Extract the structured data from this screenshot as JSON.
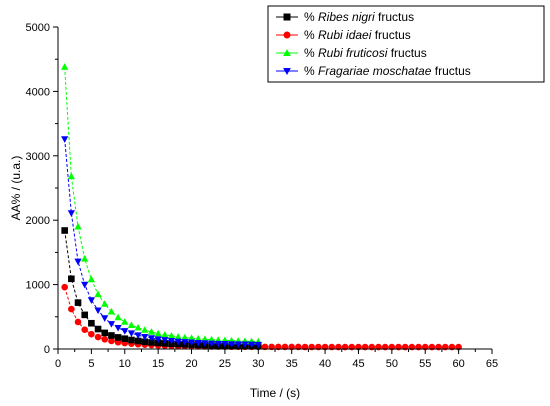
{
  "chart_data": {
    "type": "line",
    "xlabel": "Time / (s)",
    "ylabel": "AA% / (u.a.)",
    "xlim": [
      0,
      65
    ],
    "ylim": [
      0,
      5000
    ],
    "xticks": [
      0,
      5,
      10,
      15,
      20,
      25,
      30,
      35,
      40,
      45,
      50,
      55,
      60,
      65
    ],
    "yticks": [
      0,
      1000,
      2000,
      3000,
      4000,
      5000
    ],
    "legend_position": "top-right",
    "grid": false,
    "series": [
      {
        "name_parts": [
          "% ",
          "Ribes nigri",
          " fructus"
        ],
        "color": "#000000",
        "marker": "square",
        "x": [
          1,
          2,
          3,
          4,
          5,
          6,
          7,
          8,
          9,
          10,
          11,
          12,
          13,
          14,
          15,
          16,
          17,
          18,
          19,
          20,
          21,
          22,
          23,
          24,
          25,
          26,
          27,
          28,
          29,
          30
        ],
        "values": [
          1840,
          1090,
          720,
          530,
          400,
          310,
          250,
          210,
          180,
          160,
          140,
          125,
          112,
          102,
          94,
          87,
          81,
          76,
          72,
          68,
          65,
          62,
          60,
          58,
          56,
          55,
          54,
          53,
          52,
          51
        ]
      },
      {
        "name_parts": [
          "% ",
          "Rubi idaei",
          " fructus"
        ],
        "color": "#ff0000",
        "marker": "circle",
        "x": [
          1,
          2,
          3,
          4,
          5,
          6,
          7,
          8,
          9,
          10,
          11,
          12,
          13,
          14,
          15,
          16,
          17,
          18,
          19,
          20,
          21,
          22,
          23,
          24,
          25,
          26,
          27,
          28,
          29,
          30,
          31,
          32,
          33,
          34,
          35,
          36,
          37,
          38,
          39,
          40,
          41,
          42,
          43,
          44,
          45,
          46,
          47,
          48,
          49,
          50,
          51,
          52,
          53,
          54,
          55,
          56,
          57,
          58,
          59,
          60
        ],
        "values": [
          960,
          620,
          420,
          300,
          230,
          185,
          150,
          125,
          105,
          92,
          82,
          74,
          67,
          61,
          56,
          52,
          49,
          46,
          44,
          42,
          40,
          39,
          38,
          37,
          36,
          35,
          35,
          34,
          34,
          33,
          33,
          33,
          32,
          32,
          32,
          32,
          31,
          31,
          31,
          31,
          31,
          30,
          30,
          30,
          30,
          30,
          30,
          30,
          30,
          30,
          30,
          30,
          30,
          30,
          30,
          30,
          30,
          30,
          30,
          30
        ]
      },
      {
        "name_parts": [
          "% ",
          "Rubi fruticosi",
          " fructus"
        ],
        "color": "#00ff00",
        "marker": "triangle-up",
        "x": [
          1,
          2,
          3,
          4,
          5,
          6,
          7,
          8,
          9,
          10,
          11,
          12,
          13,
          14,
          15,
          16,
          17,
          18,
          19,
          20,
          21,
          22,
          23,
          24,
          25,
          26,
          27,
          28,
          29,
          30
        ],
        "values": [
          4380,
          2680,
          1900,
          1400,
          1080,
          850,
          700,
          580,
          490,
          420,
          370,
          330,
          295,
          265,
          240,
          220,
          205,
          190,
          178,
          168,
          160,
          152,
          146,
          140,
          135,
          130,
          126,
          122,
          118,
          115
        ]
      },
      {
        "name_parts": [
          "% ",
          "Fragariae moschatae",
          " fructus"
        ],
        "color": "#0000ff",
        "marker": "triangle-down",
        "x": [
          1,
          2,
          3,
          4,
          5,
          6,
          7,
          8,
          9,
          10,
          11,
          12,
          13,
          14,
          15,
          16,
          17,
          18,
          19,
          20,
          21,
          22,
          23,
          24,
          25,
          26,
          27,
          28,
          29,
          30
        ],
        "values": [
          3260,
          2110,
          1360,
          1000,
          760,
          600,
          480,
          390,
          330,
          280,
          245,
          215,
          190,
          170,
          153,
          140,
          128,
          118,
          110,
          103,
          97,
          92,
          87,
          83,
          80,
          77,
          74,
          72,
          70,
          68
        ]
      }
    ]
  }
}
